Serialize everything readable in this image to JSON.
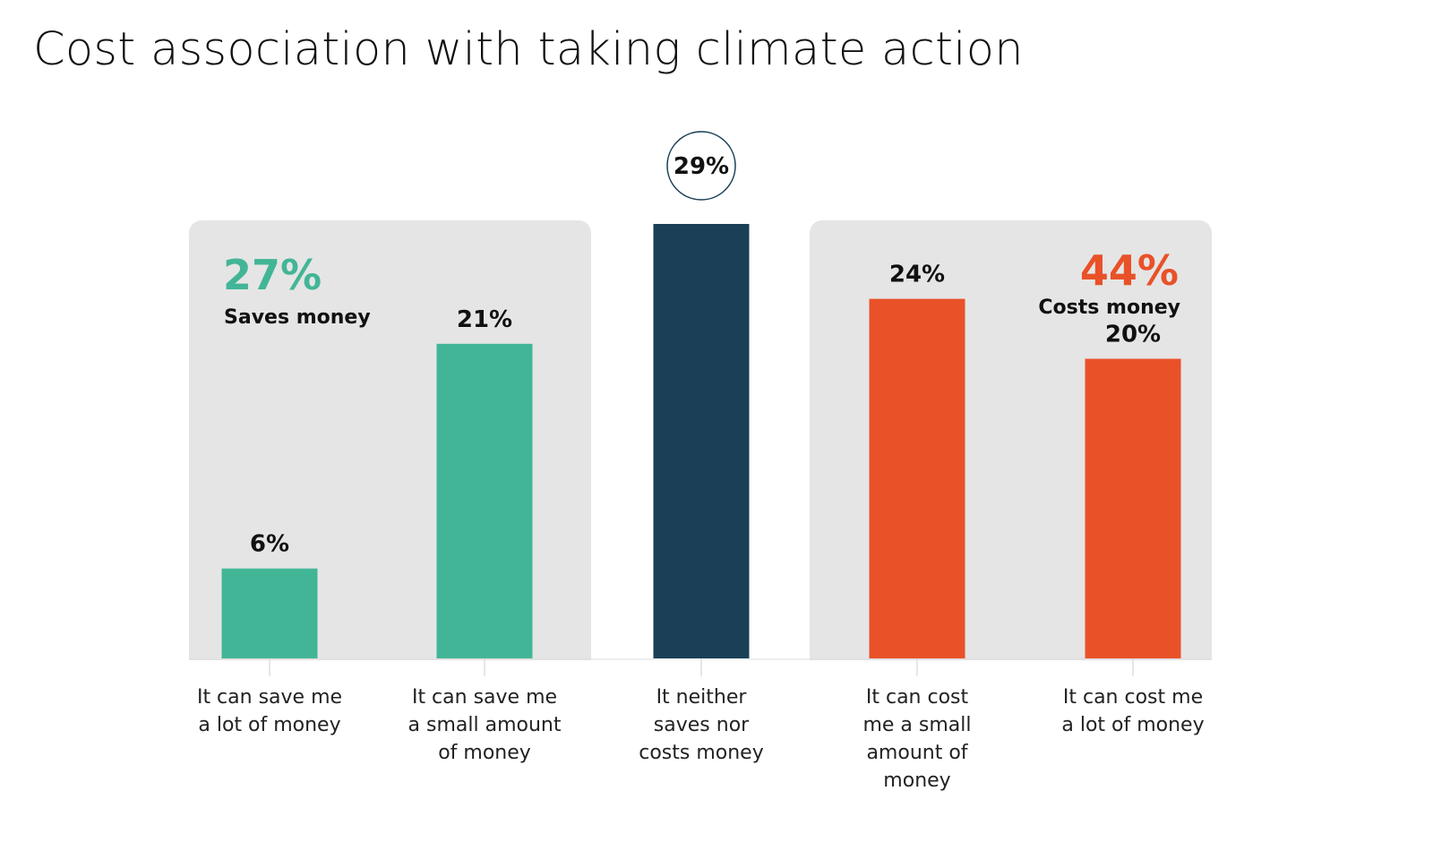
{
  "title": "Cost association with taking climate action",
  "colors": {
    "saves": "#43b597",
    "neither": "#1a3f57",
    "costs": "#e95128",
    "panel": "#e5e5e5",
    "text": "#111111"
  },
  "summaries": {
    "saves": {
      "percent": "27%",
      "label": "Saves money"
    },
    "costs": {
      "percent": "44%",
      "label": "Costs money"
    }
  },
  "chart_data": {
    "type": "bar",
    "title": "Cost association with taking climate action",
    "categories": [
      [
        "It can save me",
        "a lot of money"
      ],
      [
        "It can save me",
        "a small amount",
        "of money"
      ],
      [
        "It neither",
        "saves nor",
        "costs money"
      ],
      [
        "It can cost",
        "me a small",
        "amount of",
        "money"
      ],
      [
        "It can cost me",
        "a lot of money"
      ]
    ],
    "values": [
      6,
      21,
      29,
      24,
      20
    ],
    "value_labels": [
      "6%",
      "21%",
      "29%",
      "24%",
      "20%"
    ],
    "bar_groups": [
      "saves",
      "saves",
      "neither",
      "costs",
      "costs"
    ],
    "ylim": [
      0,
      29
    ],
    "grid": false,
    "legend": "none"
  }
}
